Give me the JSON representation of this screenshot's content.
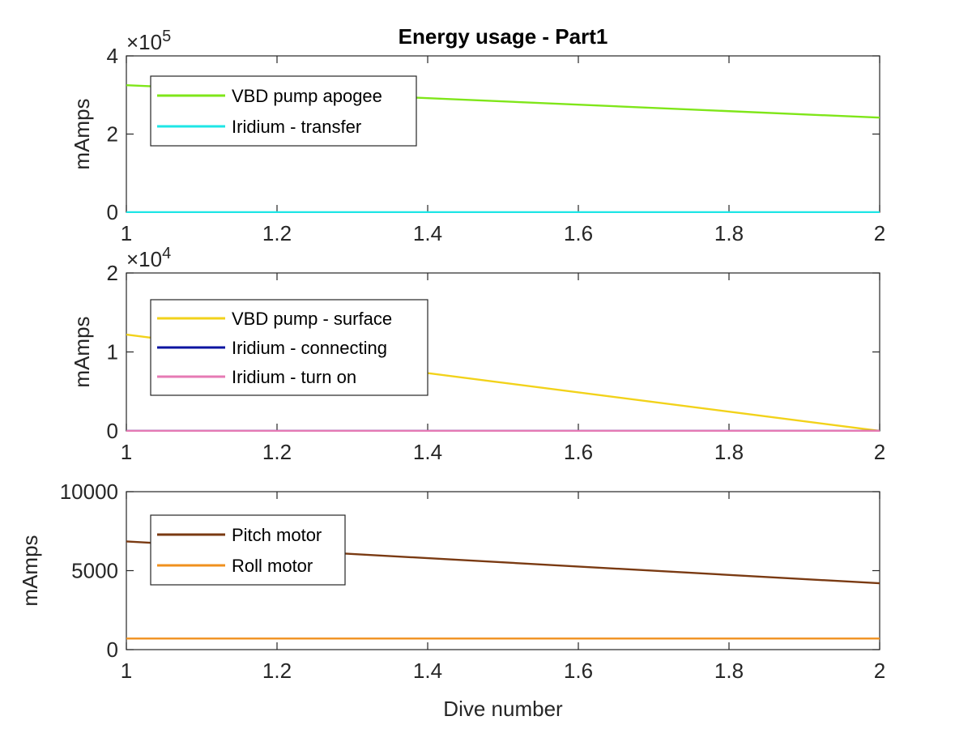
{
  "chart_data": [
    {
      "type": "line",
      "title": "Energy usage - Part1",
      "xlabel": "",
      "ylabel": "mAmps",
      "y_exponent_label": "×10",
      "y_exponent_power": "5",
      "xlim": [
        1,
        2
      ],
      "ylim": [
        0,
        400000
      ],
      "x_ticks": [
        "1",
        "1.2",
        "1.4",
        "1.6",
        "1.8",
        "2"
      ],
      "y_ticks": [
        "0",
        "2",
        "4"
      ],
      "y_tick_values": [
        0,
        200000,
        400000
      ],
      "x_tick_values": [
        1,
        1.2,
        1.4,
        1.6,
        1.8,
        2
      ],
      "legend_position": "top-left",
      "series": [
        {
          "name": "VBD pump apogee",
          "color": "#7fe619",
          "x": [
            1,
            2
          ],
          "y": [
            325000,
            242000
          ]
        },
        {
          "name": "Iridium - transfer",
          "color": "#1ee6e6",
          "x": [
            1,
            2
          ],
          "y": [
            0,
            0
          ]
        }
      ]
    },
    {
      "type": "line",
      "title": "",
      "xlabel": "",
      "ylabel": "mAmps",
      "y_exponent_label": "×10",
      "y_exponent_power": "4",
      "xlim": [
        1,
        2
      ],
      "ylim": [
        0,
        20000
      ],
      "x_ticks": [
        "1",
        "1.2",
        "1.4",
        "1.6",
        "1.8",
        "2"
      ],
      "y_ticks": [
        "0",
        "1",
        "2"
      ],
      "y_tick_values": [
        0,
        10000,
        20000
      ],
      "x_tick_values": [
        1,
        1.2,
        1.4,
        1.6,
        1.8,
        2
      ],
      "legend_position": "top-left",
      "series": [
        {
          "name": "VBD pump - surface",
          "color": "#f2d21a",
          "x": [
            1,
            2
          ],
          "y": [
            12200,
            0
          ]
        },
        {
          "name": "Iridium - connecting",
          "color": "#0a14a0",
          "x": [
            1,
            2
          ],
          "y": [
            0,
            0
          ]
        },
        {
          "name": "Iridium - turn on",
          "color": "#e67ab4",
          "x": [
            1,
            2
          ],
          "y": [
            0,
            0
          ]
        }
      ]
    },
    {
      "type": "line",
      "title": "",
      "xlabel": "Dive number",
      "ylabel": "mAmps",
      "y_exponent_label": "",
      "y_exponent_power": "",
      "xlim": [
        1,
        2
      ],
      "ylim": [
        0,
        10000
      ],
      "x_ticks": [
        "1",
        "1.2",
        "1.4",
        "1.6",
        "1.8",
        "2"
      ],
      "y_ticks": [
        "0",
        "5000",
        "10000"
      ],
      "y_tick_values": [
        0,
        5000,
        10000
      ],
      "x_tick_values": [
        1,
        1.2,
        1.4,
        1.6,
        1.8,
        2
      ],
      "legend_position": "top-left",
      "series": [
        {
          "name": "Pitch motor",
          "color": "#7a3a12",
          "x": [
            1,
            2
          ],
          "y": [
            6850,
            4200
          ]
        },
        {
          "name": "Roll motor",
          "color": "#f0901e",
          "x": [
            1,
            2
          ],
          "y": [
            700,
            700
          ]
        }
      ]
    }
  ]
}
